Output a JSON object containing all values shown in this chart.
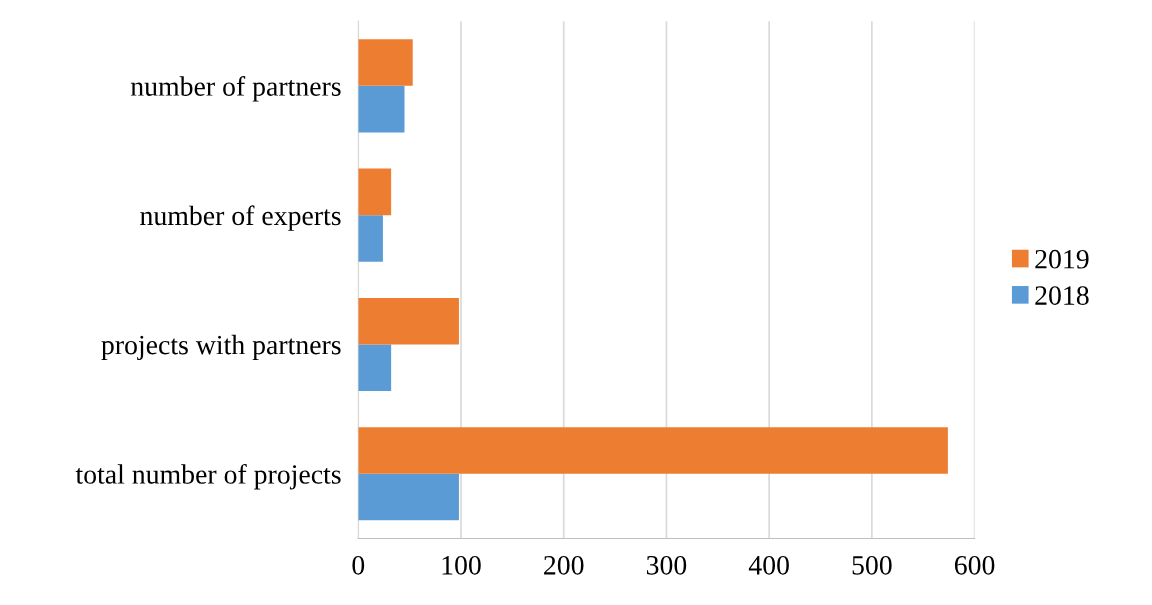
{
  "chart_data": {
    "type": "bar",
    "orientation": "horizontal",
    "categories": [
      "number of partners",
      "number of experts",
      "projects with partners",
      "total number of projects"
    ],
    "series": [
      {
        "name": "2018",
        "color": "#5b9bd5",
        "values": [
          45,
          24,
          32,
          98
        ]
      },
      {
        "name": "2019",
        "color": "#ed7d31",
        "values": [
          53,
          32,
          98,
          574
        ]
      }
    ],
    "xlim": [
      0,
      600
    ],
    "xticks": [
      0,
      100,
      200,
      300,
      400,
      500,
      600
    ],
    "grid": "x",
    "legend": "right"
  }
}
